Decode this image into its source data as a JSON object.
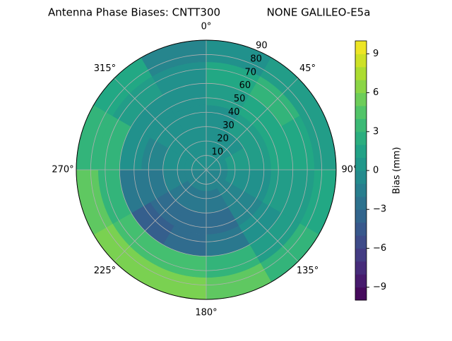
{
  "chart_data": {
    "type": "polar-contour",
    "title_left": "Antenna Phase Biases: CNTT300",
    "title_right": "NONE GALILEO-E5a",
    "colorbar_label": "Bias (mm)",
    "colormap": "viridis",
    "azimuth_edges": [
      0,
      30,
      60,
      90,
      120,
      150,
      180,
      210,
      240,
      270,
      300,
      330,
      360
    ],
    "zenith_edges": [
      0,
      15,
      30,
      45,
      60,
      75,
      90
    ],
    "z": [
      [
        0,
        0,
        0,
        -1,
        -1,
        -1,
        -1,
        -1,
        -1,
        0,
        0,
        0
      ],
      [
        0,
        0,
        1,
        0,
        -1,
        -2,
        -2,
        -2,
        -1,
        0,
        0,
        0
      ],
      [
        0,
        1,
        1,
        0,
        -1,
        -3,
        -3,
        -3,
        -2,
        -1,
        0,
        0
      ],
      [
        1,
        2,
        2,
        1,
        0,
        -2,
        -3,
        -4,
        -2,
        0,
        0,
        0
      ],
      [
        2,
        3,
        2,
        1,
        1,
        3,
        4,
        4,
        3,
        3,
        1,
        0
      ],
      [
        0,
        1,
        1,
        2,
        3,
        5,
        6,
        6,
        5,
        3,
        2,
        -1
      ]
    ],
    "rlim": [
      0,
      90
    ],
    "rticks": [
      10,
      20,
      30,
      40,
      50,
      60,
      70,
      80,
      90
    ],
    "thetaticks": [
      {
        "value": 0,
        "label": "0°"
      },
      {
        "value": 45,
        "label": "45°"
      },
      {
        "value": 90,
        "label": "90°"
      },
      {
        "value": 135,
        "label": "135°"
      },
      {
        "value": 180,
        "label": "180°"
      },
      {
        "value": 225,
        "label": "225°"
      },
      {
        "value": 270,
        "label": "270°"
      },
      {
        "value": 315,
        "label": "315°"
      }
    ],
    "clim": [
      -10,
      10
    ],
    "cticks": [
      {
        "value": -9,
        "label": "−9"
      },
      {
        "value": -6,
        "label": "−6"
      },
      {
        "value": -3,
        "label": "−3"
      },
      0,
      3,
      6,
      9
    ],
    "grid": true
  }
}
